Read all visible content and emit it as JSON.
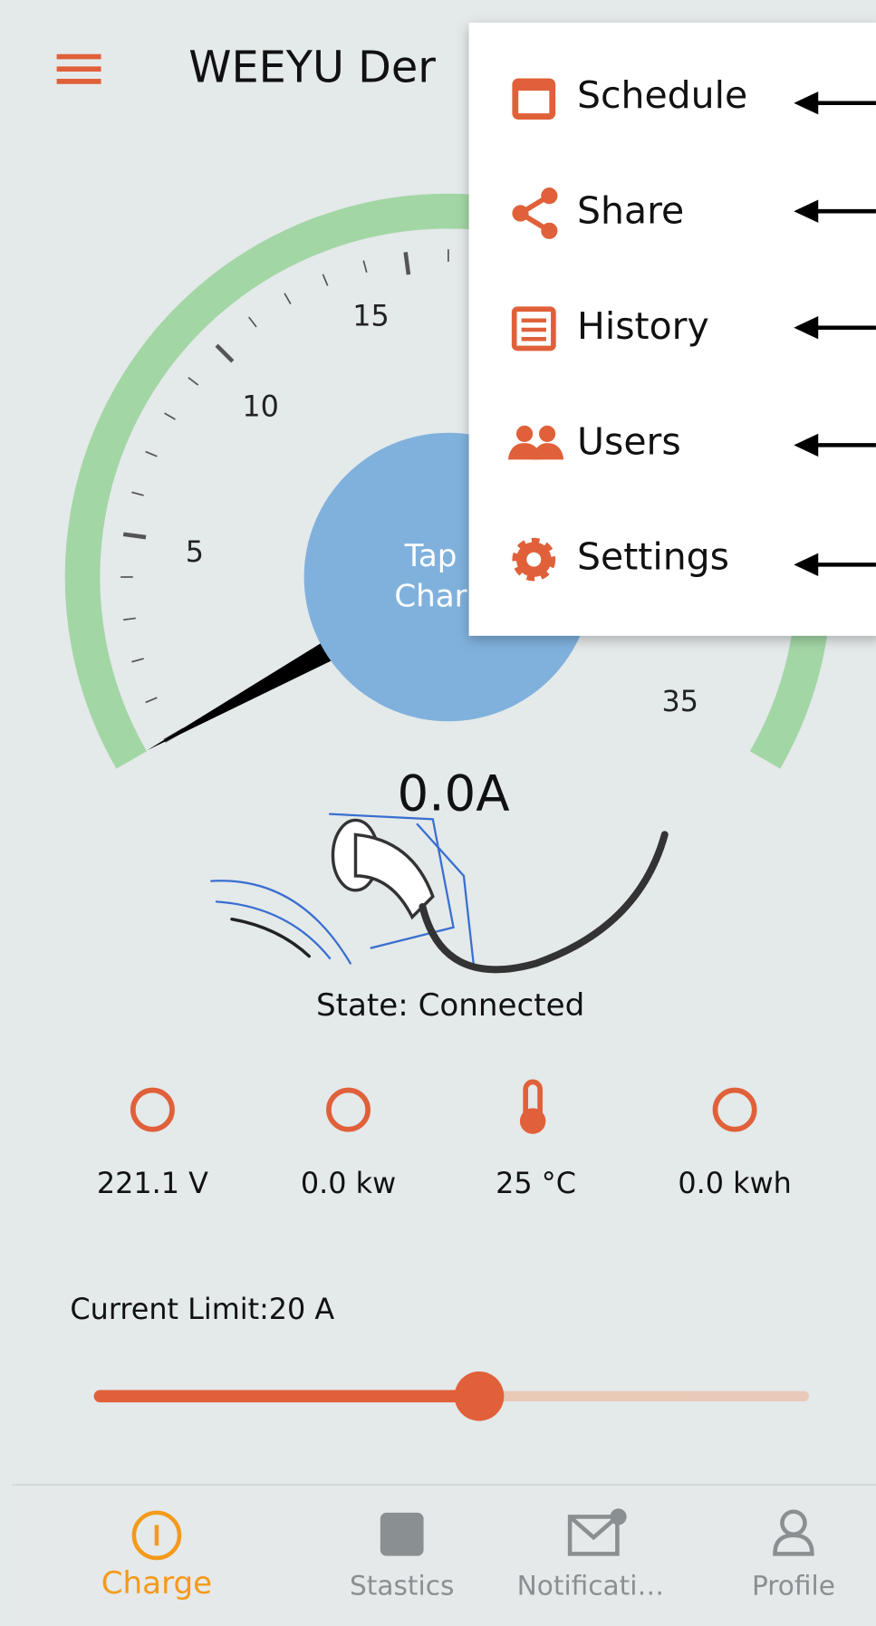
{
  "header": {
    "title": "WEEYU Der"
  },
  "gauge": {
    "labels": [
      "5",
      "10",
      "15",
      "35"
    ],
    "button": [
      "Tap",
      "Char"
    ],
    "reading": "0.0A"
  },
  "menu": {
    "items": [
      "Schedule",
      "Share",
      "History",
      "Users",
      "Settings"
    ]
  },
  "state": "State: Connected",
  "stats": [
    "221.1 V",
    "0.0 kw",
    "25 °C",
    "0.0 kwh"
  ],
  "current_limit": "Current Limit:20 A",
  "tabs": [
    "Charge",
    "Stastics",
    "Notificati…",
    "Profile"
  ]
}
